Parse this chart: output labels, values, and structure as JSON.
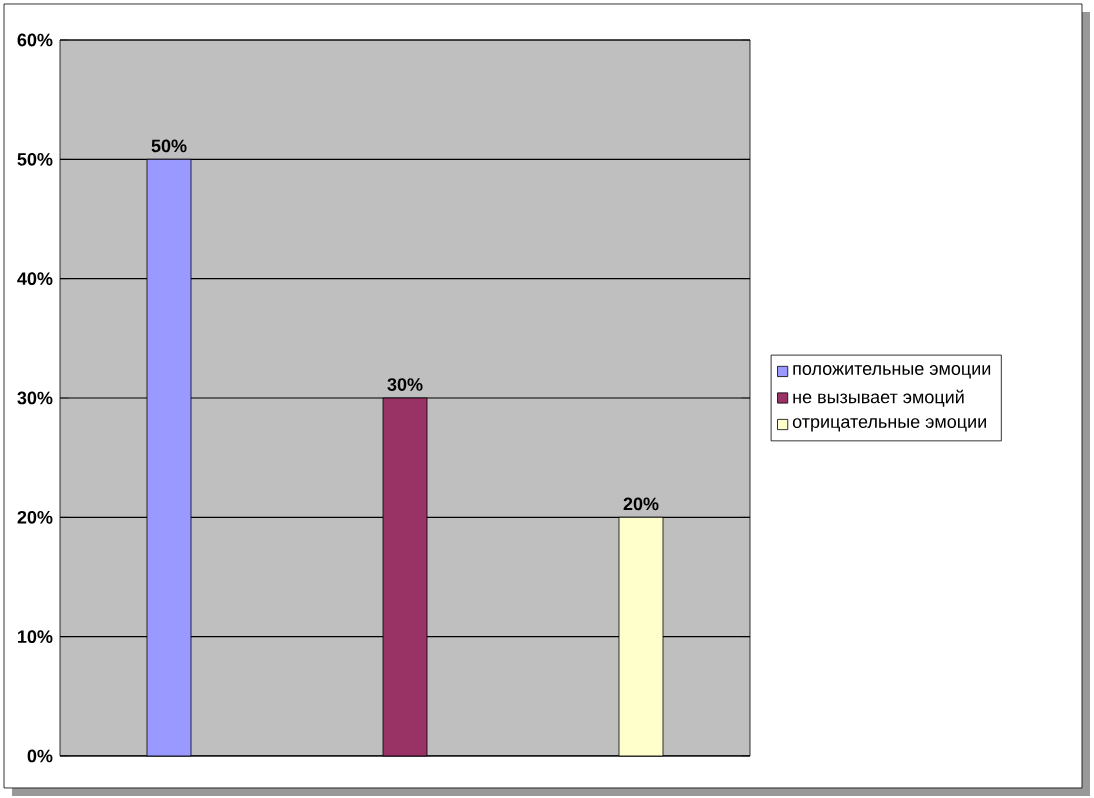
{
  "chart_data": {
    "type": "bar",
    "categories": [
      null
    ],
    "series": [
      {
        "name": "положительные эмоции",
        "color": "#9999ff",
        "values": [
          50
        ],
        "value_labels": [
          "50%"
        ]
      },
      {
        "name": "не вызывает эмоций",
        "color": "#993366",
        "values": [
          30
        ],
        "value_labels": [
          "30%"
        ]
      },
      {
        "name": "отрицательные эмоции",
        "color": "#ffffcc",
        "values": [
          20
        ],
        "value_labels": [
          "20%"
        ]
      }
    ],
    "ylim": [
      0,
      60
    ],
    "yticks": [
      {
        "value": 0,
        "label": "0%"
      },
      {
        "value": 10,
        "label": "10%"
      },
      {
        "value": 20,
        "label": "20%"
      },
      {
        "value": 30,
        "label": "30%"
      },
      {
        "value": 40,
        "label": "40%"
      },
      {
        "value": 50,
        "label": "50%"
      },
      {
        "value": 60,
        "label": "60%"
      }
    ],
    "grid": "y",
    "legend": "right"
  }
}
